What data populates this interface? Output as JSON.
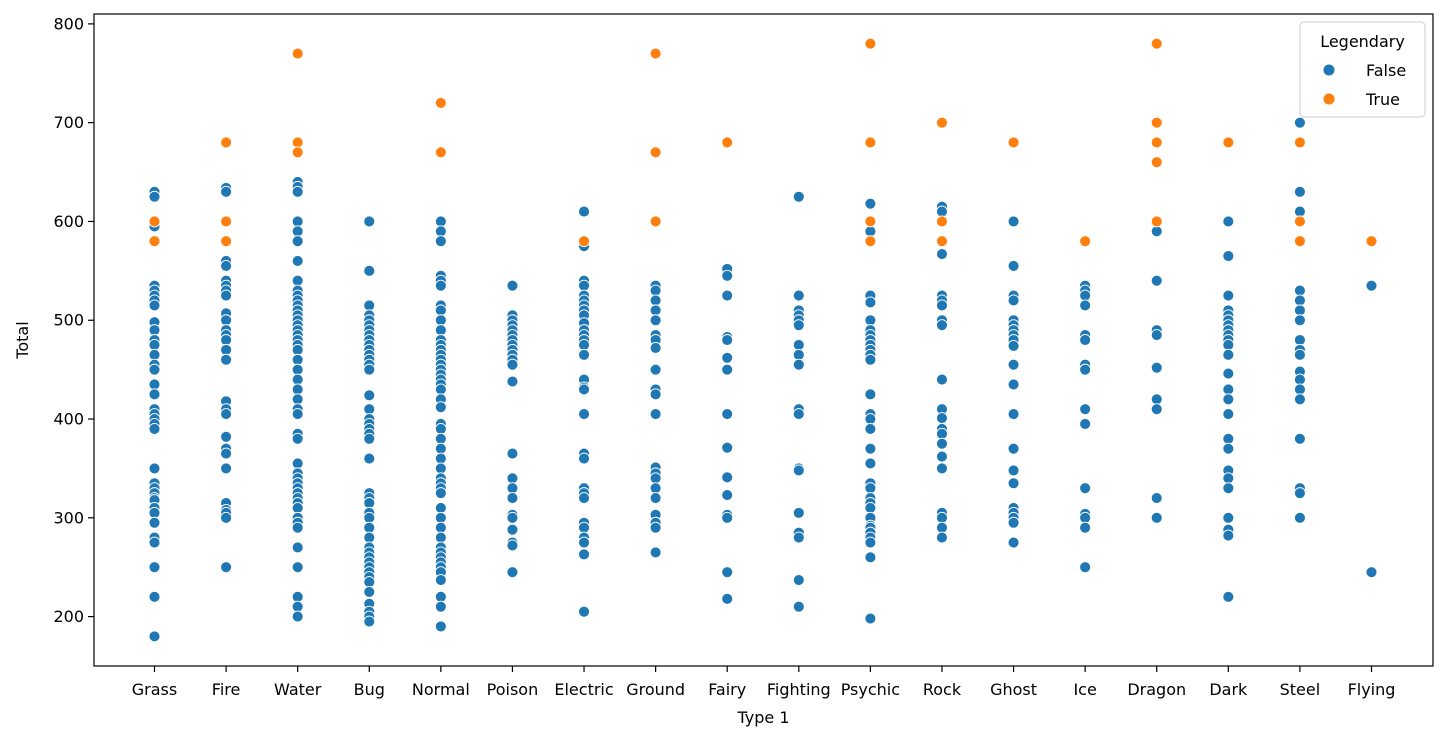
{
  "chart_data": {
    "type": "scatter",
    "title": "",
    "xlabel": "Type 1",
    "ylabel": "Total",
    "categories": [
      "Grass",
      "Fire",
      "Water",
      "Bug",
      "Normal",
      "Poison",
      "Electric",
      "Ground",
      "Fairy",
      "Fighting",
      "Psychic",
      "Rock",
      "Ghost",
      "Ice",
      "Dragon",
      "Dark",
      "Steel",
      "Flying"
    ],
    "ylim": [
      150,
      810
    ],
    "yticks": [
      200,
      300,
      400,
      500,
      600,
      700,
      800
    ],
    "grid": false,
    "legend": {
      "title": "Legendary",
      "placement": "top-right",
      "entries": [
        "False",
        "True"
      ]
    },
    "colors": {
      "False": "#1f77b4",
      "True": "#ff7f0e"
    },
    "series": [
      {
        "name": "False",
        "points": {
          "Grass": [
            630,
            625,
            595,
            535,
            530,
            525,
            520,
            515,
            498,
            490,
            480,
            475,
            465,
            455,
            450,
            435,
            425,
            410,
            405,
            400,
            395,
            390,
            350,
            335,
            330,
            325,
            320,
            318,
            310,
            305,
            295,
            280,
            275,
            250,
            220,
            180
          ],
          "Fire": [
            634,
            630,
            560,
            555,
            540,
            535,
            530,
            525,
            507,
            500,
            490,
            485,
            480,
            470,
            460,
            418,
            410,
            405,
            382,
            370,
            365,
            350,
            315,
            308,
            305,
            300,
            250
          ],
          "Water": [
            640,
            635,
            630,
            600,
            590,
            580,
            560,
            540,
            530,
            525,
            520,
            515,
            510,
            505,
            500,
            495,
            490,
            485,
            480,
            475,
            470,
            460,
            450,
            440,
            430,
            420,
            410,
            405,
            385,
            380,
            355,
            345,
            340,
            335,
            330,
            325,
            320,
            315,
            310,
            300,
            295,
            290,
            270,
            250,
            220,
            210,
            200
          ],
          "Bug": [
            600,
            550,
            515,
            505,
            500,
            495,
            490,
            485,
            480,
            475,
            470,
            465,
            460,
            455,
            450,
            424,
            410,
            400,
            395,
            390,
            385,
            380,
            360,
            325,
            320,
            315,
            305,
            300,
            290,
            280,
            270,
            265,
            260,
            255,
            250,
            245,
            240,
            235,
            225,
            213,
            205,
            200,
            195
          ],
          "Normal": [
            600,
            590,
            580,
            545,
            540,
            535,
            515,
            510,
            500,
            490,
            480,
            475,
            470,
            465,
            460,
            455,
            450,
            445,
            440,
            435,
            430,
            420,
            412,
            395,
            390,
            380,
            370,
            360,
            350,
            340,
            335,
            330,
            325,
            310,
            300,
            290,
            280,
            270,
            265,
            260,
            255,
            250,
            245,
            237,
            220,
            210,
            190
          ],
          "Poison": [
            535,
            505,
            500,
            495,
            490,
            485,
            480,
            475,
            470,
            465,
            460,
            455,
            438,
            365,
            340,
            330,
            320,
            303,
            300,
            288,
            275,
            272,
            245
          ],
          "Electric": [
            610,
            580,
            575,
            540,
            535,
            525,
            520,
            515,
            510,
            505,
            497,
            490,
            485,
            480,
            475,
            465,
            440,
            432,
            430,
            405,
            365,
            360,
            330,
            325,
            320,
            295,
            290,
            280,
            275,
            263,
            205
          ],
          "Ground": [
            535,
            530,
            520,
            510,
            500,
            485,
            480,
            472,
            450,
            430,
            425,
            405,
            351,
            345,
            340,
            330,
            320,
            303,
            295,
            290,
            265
          ],
          "Fairy": [
            552,
            545,
            525,
            483,
            480,
            462,
            450,
            405,
            371,
            341,
            323,
            303,
            300,
            245,
            218
          ],
          "Fighting": [
            625,
            525,
            510,
            505,
            500,
            495,
            475,
            465,
            455,
            410,
            405,
            350,
            348,
            305,
            285,
            280,
            237,
            210
          ],
          "Psychic": [
            618,
            600,
            590,
            525,
            518,
            500,
            490,
            485,
            480,
            475,
            470,
            465,
            460,
            425,
            405,
            400,
            390,
            370,
            355,
            335,
            330,
            320,
            315,
            310,
            300,
            292,
            290,
            285,
            280,
            275,
            260,
            198
          ],
          "Rock": [
            615,
            610,
            567,
            525,
            520,
            515,
            500,
            495,
            440,
            410,
            401,
            390,
            385,
            375,
            362,
            350,
            305,
            300,
            290,
            280
          ],
          "Ghost": [
            600,
            555,
            525,
            520,
            500,
            495,
            490,
            485,
            480,
            474,
            455,
            435,
            405,
            370,
            348,
            335,
            310,
            305,
            300,
            295,
            275
          ],
          "Ice": [
            535,
            530,
            525,
            515,
            485,
            480,
            455,
            450,
            410,
            395,
            330,
            304,
            300,
            290,
            250
          ],
          "Dragon": [
            590,
            540,
            490,
            485,
            452,
            420,
            410,
            320,
            300
          ],
          "Dark": [
            600,
            565,
            525,
            510,
            505,
            500,
            495,
            490,
            485,
            480,
            475,
            465,
            446,
            430,
            420,
            405,
            380,
            370,
            348,
            340,
            330,
            300,
            288,
            282,
            220
          ],
          "Steel": [
            700,
            630,
            610,
            600,
            530,
            520,
            510,
            500,
            480,
            470,
            465,
            448,
            440,
            430,
            420,
            380,
            330,
            325,
            300
          ],
          "Flying": [
            535,
            245
          ]
        }
      },
      {
        "name": "True",
        "points": {
          "Grass": [
            600,
            580
          ],
          "Fire": [
            680,
            600,
            580
          ],
          "Water": [
            770,
            680,
            670
          ],
          "Normal": [
            720,
            670
          ],
          "Electric": [
            580
          ],
          "Ground": [
            770,
            670,
            600
          ],
          "Fairy": [
            680
          ],
          "Psychic": [
            780,
            680,
            600,
            580
          ],
          "Rock": [
            700,
            600,
            580
          ],
          "Ghost": [
            680
          ],
          "Ice": [
            580
          ],
          "Dragon": [
            780,
            700,
            680,
            660,
            600
          ],
          "Dark": [
            680
          ],
          "Steel": [
            680,
            600,
            580
          ],
          "Flying": [
            580
          ]
        }
      }
    ]
  }
}
